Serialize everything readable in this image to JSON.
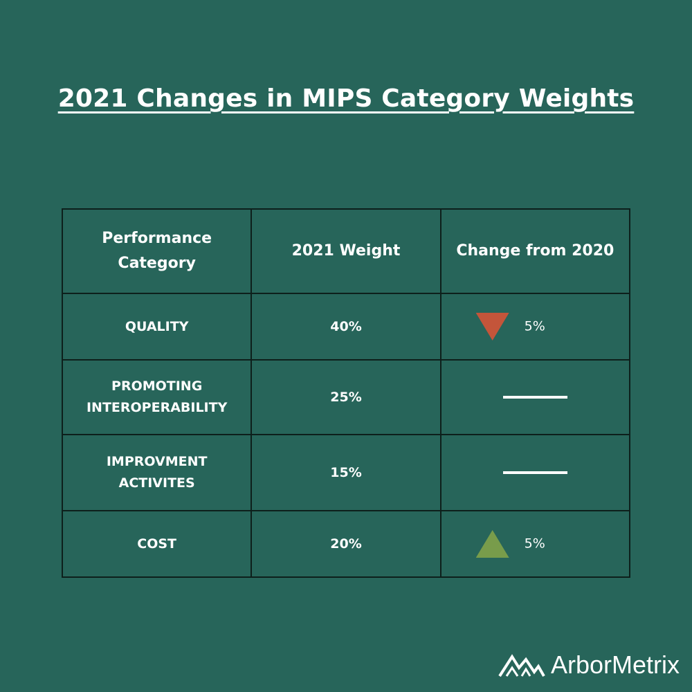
{
  "title": "2021 Changes in MIPS Category Weights",
  "chart_data": {
    "type": "table",
    "columns": [
      "Performance Category",
      "2021 Weight",
      "Change from 2020"
    ],
    "rows": [
      {
        "category": "QUALITY",
        "weight": "40%",
        "direction": "down",
        "change": "5%"
      },
      {
        "category": "PROMOTING INTEROPERABILITY",
        "weight": "25%",
        "direction": "none",
        "change": ""
      },
      {
        "category": "IMPROVMENT ACTIVITES",
        "weight": "15%",
        "direction": "none",
        "change": ""
      },
      {
        "category": "COST",
        "weight": "20%",
        "direction": "up",
        "change": "5%"
      }
    ]
  },
  "colors": {
    "background": "#27655A",
    "decrease": "#C4553A",
    "increase": "#789C4B",
    "border": "#0d1f1b"
  },
  "logo": {
    "text": "ArborMetrix",
    "icon": "mountains-icon"
  }
}
